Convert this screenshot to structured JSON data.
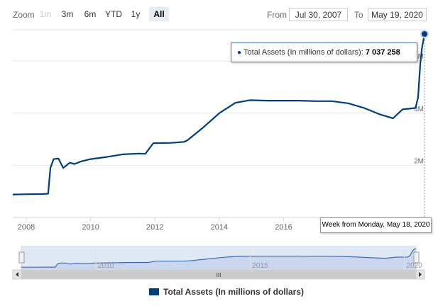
{
  "toolbar": {
    "zoom_label": "Zoom",
    "zoom_buttons": [
      "1m",
      "3m",
      "6m",
      "YTD",
      "1y",
      "All"
    ],
    "from_label": "From",
    "from_value": "Jul 30, 2007",
    "to_label": "To",
    "to_value": "May 19, 2020"
  },
  "tooltip": {
    "series": "Total Assets (In millions of dollars): ",
    "value": "7 037 258"
  },
  "date_flag": "Week from Monday, May 18, 2020",
  "navigator": {
    "ticks": [
      {
        "x": 2010,
        "label": "2010"
      },
      {
        "x": 2015,
        "label": "2015"
      },
      {
        "x": 2020,
        "label": "2020"
      }
    ],
    "scrollbar_grip": "III"
  },
  "colors": {
    "series": "#003f7f",
    "accent": "#4b74b8"
  },
  "chart_data": {
    "type": "line",
    "title": "",
    "xlabel": "",
    "ylabel": "",
    "xlim": [
      2007.58,
      2020.38
    ],
    "ylim": [
      0,
      7200000
    ],
    "x_ticks": [
      {
        "x": 2008,
        "label": "2008"
      },
      {
        "x": 2010,
        "label": "2010"
      },
      {
        "x": 2012,
        "label": "2012"
      },
      {
        "x": 2014,
        "label": "2014"
      },
      {
        "x": 2016,
        "label": "2016"
      }
    ],
    "y_ticks": [
      {
        "y": 2000000,
        "label": "2M"
      },
      {
        "y": 4000000,
        "label": "4M"
      },
      {
        "y": 6000000,
        "label": "6M"
      }
    ],
    "legend": "bottom-center",
    "series": [
      {
        "name": "Total Assets (In millions of dollars)",
        "x": [
          2007.58,
          2008.0,
          2008.5,
          2008.68,
          2008.75,
          2008.85,
          2009.0,
          2009.15,
          2009.35,
          2009.5,
          2009.7,
          2010.0,
          2010.5,
          2011.0,
          2011.5,
          2011.7,
          2011.95,
          2012.5,
          2012.9,
          2013.0,
          2013.5,
          2014.0,
          2014.5,
          2014.95,
          2015.5,
          2016.0,
          2016.5,
          2017.0,
          2017.5,
          2018.0,
          2018.5,
          2019.0,
          2019.4,
          2019.7,
          2019.9,
          2020.1,
          2020.18,
          2020.25,
          2020.3,
          2020.38
        ],
        "values": [
          880000,
          890000,
          900000,
          910000,
          1900000,
          2240000,
          2260000,
          1900000,
          2100000,
          2050000,
          2150000,
          2240000,
          2320000,
          2420000,
          2450000,
          2440000,
          2850000,
          2860000,
          2900000,
          2950000,
          3450000,
          4000000,
          4400000,
          4500000,
          4480000,
          4480000,
          4480000,
          4460000,
          4460000,
          4380000,
          4200000,
          3950000,
          3800000,
          4150000,
          4170000,
          4200000,
          4600000,
          5900000,
          6500000,
          7037258
        ]
      }
    ]
  }
}
